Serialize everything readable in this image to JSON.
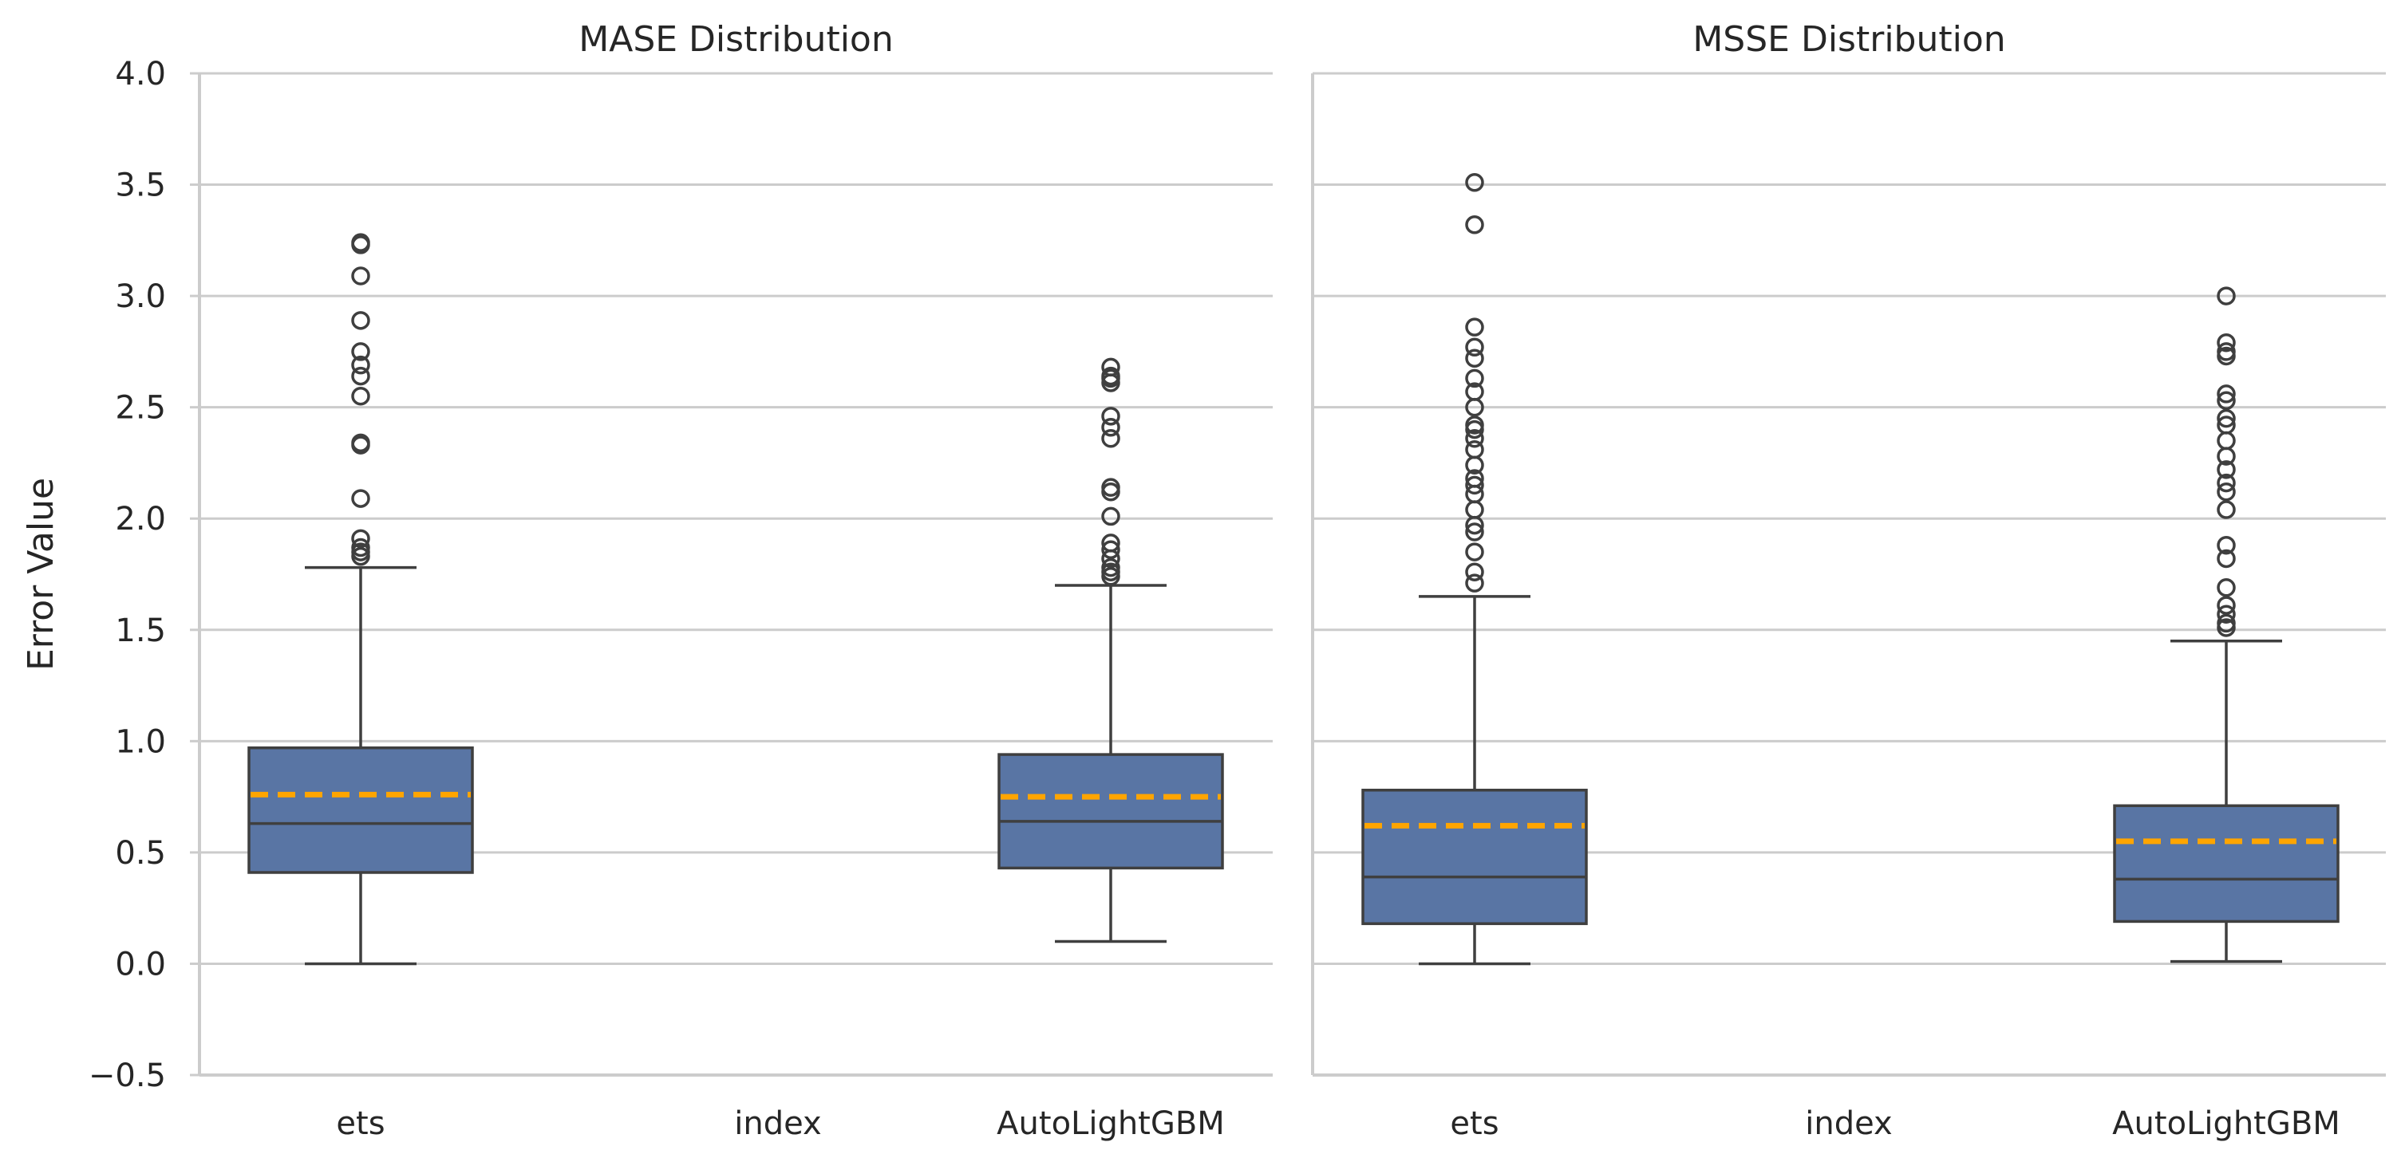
{
  "chart_data": {
    "type": "box",
    "ylabel": "Error Value",
    "ylim": [
      -0.5,
      4.0
    ],
    "yticks": [
      -0.5,
      0.0,
      0.5,
      1.0,
      1.5,
      2.0,
      2.5,
      3.0,
      3.5,
      4.0
    ],
    "ytick_labels": [
      "−0.5",
      "0.0",
      "0.5",
      "1.0",
      "1.5",
      "2.0",
      "2.5",
      "3.0",
      "3.5",
      "4.0"
    ],
    "grid": "horizontal",
    "colors": {
      "box": "#5975a4",
      "mean_line": "#ffa500",
      "edge": "#3f3f3f",
      "grid": "#cccccc"
    },
    "panels": [
      {
        "title": "MASE Distribution",
        "categories": [
          "ets",
          "index",
          "AutoLightGBM"
        ],
        "boxes": [
          {
            "category": "ets",
            "whisker_low": 0.0,
            "q1": 0.41,
            "median": 0.63,
            "mean": 0.76,
            "q3": 0.97,
            "whisker_high": 1.78,
            "outliers": [
              1.83,
              1.85,
              1.87,
              1.91,
              2.09,
              2.33,
              2.34,
              2.55,
              2.64,
              2.69,
              2.75,
              2.89,
              3.09,
              3.23,
              3.24
            ]
          },
          {
            "category": "index",
            "empty": true
          },
          {
            "category": "AutoLightGBM",
            "whisker_low": 0.1,
            "q1": 0.43,
            "median": 0.64,
            "mean": 0.75,
            "q3": 0.94,
            "whisker_high": 1.7,
            "outliers": [
              1.74,
              1.76,
              1.78,
              1.82,
              1.86,
              1.89,
              2.01,
              2.12,
              2.14,
              2.36,
              2.41,
              2.46,
              2.61,
              2.63,
              2.64,
              2.68
            ]
          }
        ]
      },
      {
        "title": "MSSE Distribution",
        "categories": [
          "ets",
          "index",
          "AutoLightGBM"
        ],
        "boxes": [
          {
            "category": "ets",
            "whisker_low": 0.0,
            "q1": 0.18,
            "median": 0.39,
            "mean": 0.62,
            "q3": 0.78,
            "whisker_high": 1.65,
            "outliers": [
              1.71,
              1.76,
              1.85,
              1.94,
              1.97,
              2.04,
              2.11,
              2.15,
              2.18,
              2.24,
              2.31,
              2.36,
              2.4,
              2.42,
              2.5,
              2.57,
              2.63,
              2.72,
              2.77,
              2.86,
              3.32,
              3.51
            ]
          },
          {
            "category": "index",
            "empty": true
          },
          {
            "category": "AutoLightGBM",
            "whisker_low": 0.01,
            "q1": 0.19,
            "median": 0.38,
            "mean": 0.55,
            "q3": 0.71,
            "whisker_high": 1.45,
            "outliers": [
              1.51,
              1.53,
              1.57,
              1.61,
              1.69,
              1.82,
              1.88,
              2.04,
              2.12,
              2.16,
              2.22,
              2.28,
              2.35,
              2.42,
              2.45,
              2.53,
              2.56,
              2.73,
              2.75,
              2.79,
              3.0
            ]
          }
        ]
      }
    ]
  }
}
